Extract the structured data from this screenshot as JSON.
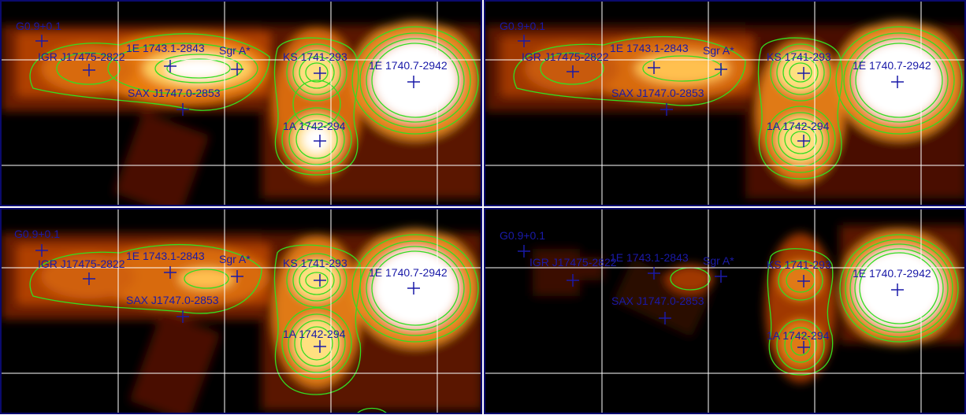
{
  "panels": [
    {
      "sources": {
        "g09": "G0.9+0.1",
        "igr": "IGR J17475-2822",
        "e1743": "1E 1743.1-2843",
        "sgra": "Sgr A*",
        "ks": "KS 1741-293",
        "e1740": "1E 1740.7-2942",
        "sax": "SAX J1747.0-2853",
        "a1742": "1A 1742-294"
      }
    },
    {
      "sources": {
        "g09": "G0.9+0.1",
        "igr": "IGR J17475-2822",
        "e1743": "1E 1743.1-2843",
        "sgra": "Sgr A*",
        "ks": "KS 1741-293",
        "e1740": "1E 1740.7-2942",
        "sax": "SAX J1747.0-2853",
        "a1742": "1A 1742-294"
      }
    },
    {
      "sources": {
        "g09": "G0.9+0.1",
        "igr": "IGR J17475-2822",
        "e1743": "1E 1743.1-2843",
        "sgra": "Sgr A*",
        "ks": "KS 1741-293",
        "e1740": "1E 1740.7-2942",
        "sax": "SAX J1747.0-2853",
        "a1742": "1A 1742-294"
      }
    },
    {
      "sources": {
        "g09": "G0.9+0.1",
        "igr": "IGR J17475-2822",
        "e1743": "1E 1743.1-2843",
        "sgra": "Sgr A*",
        "ks": "KS 1741-293",
        "e1740": "1E 1740.7-2942",
        "sax": "SAX J1747.0-2853",
        "a1742": "1A 1742-294"
      }
    }
  ],
  "colors": {
    "contour": "#33dd22",
    "marker": "#1a1aa8",
    "grid": "#ffffff",
    "frame": "#0a0a6e"
  }
}
